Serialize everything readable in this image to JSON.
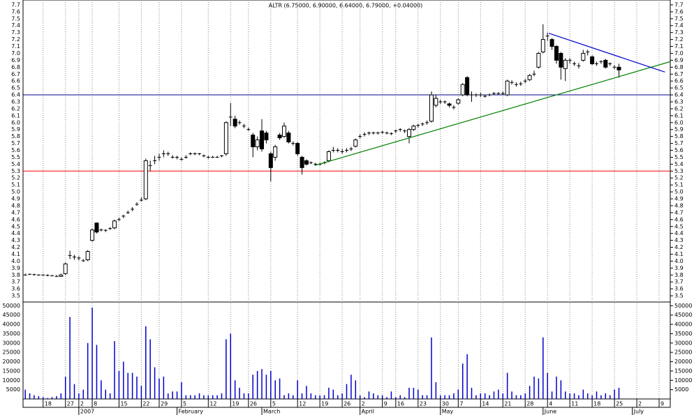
{
  "chart_data": {
    "type": "candlestick",
    "title": "ALTR (6.75000, 6.90000, 6.64000, 6.79000, +0.04000)",
    "xlim": [
      -0.5,
      144.5
    ],
    "xticks": [
      {
        "value": 4,
        "label": "18"
      },
      {
        "value": 9,
        "label": "27"
      },
      {
        "value": 12,
        "label": "2"
      },
      {
        "value": 15,
        "label": "8"
      },
      {
        "value": 21,
        "label": "15"
      },
      {
        "value": 26,
        "label": "22"
      },
      {
        "value": 30,
        "label": "29"
      },
      {
        "value": 35,
        "label": "5"
      },
      {
        "value": 41,
        "label": "12"
      },
      {
        "value": 46,
        "label": "19"
      },
      {
        "value": 50,
        "label": "26"
      },
      {
        "value": 55,
        "label": "5"
      },
      {
        "value": 61,
        "label": "12"
      },
      {
        "value": 66,
        "label": "19"
      },
      {
        "value": 71,
        "label": "26"
      },
      {
        "value": 75,
        "label": "2"
      },
      {
        "value": 80,
        "label": "9"
      },
      {
        "value": 83,
        "label": "16"
      },
      {
        "value": 88,
        "label": "23"
      },
      {
        "value": 93,
        "label": "30"
      },
      {
        "value": 97,
        "label": "7"
      },
      {
        "value": 102,
        "label": "14"
      },
      {
        "value": 107,
        "label": "21"
      },
      {
        "value": 112,
        "label": "28"
      },
      {
        "value": 117,
        "label": "4"
      },
      {
        "value": 122,
        "label": "11"
      },
      {
        "value": 127,
        "label": "18"
      },
      {
        "value": 132,
        "label": "25"
      },
      {
        "value": 137,
        "label": "2"
      },
      {
        "value": 142,
        "label": "9"
      }
    ],
    "months": [
      {
        "value": 12,
        "label": "2007"
      },
      {
        "value": 34,
        "label": "February"
      },
      {
        "value": 53,
        "label": "March"
      },
      {
        "value": 75,
        "label": "April"
      },
      {
        "value": 93,
        "label": "May"
      },
      {
        "value": 116,
        "label": "June"
      },
      {
        "value": 136,
        "label": "July"
      }
    ],
    "ylim": [
      3.41,
      7.77
    ],
    "yticks": [
      3.5,
      3.6,
      3.7,
      3.8,
      3.9,
      {
        "value": 4,
        "label": "4.0"
      },
      4.1,
      4.2,
      4.3,
      4.4,
      4.5,
      4.6,
      4.7,
      4.8,
      4.9,
      {
        "value": 5,
        "label": "5.0"
      },
      5.1,
      5.2,
      5.3,
      5.4,
      5.5,
      5.6,
      5.7,
      5.8,
      5.9,
      {
        "value": 6,
        "label": "6.0"
      },
      6.1,
      6.2,
      6.3,
      6.4,
      6.5,
      6.6,
      6.7,
      6.8,
      6.9,
      {
        "value": 7,
        "label": "7.0"
      },
      7.1,
      7.2,
      7.3,
      7.4,
      7.5,
      7.6,
      7.7
    ],
    "open": [
      3.8,
      3.81,
      3.81,
      3.8,
      3.8,
      3.8,
      3.79,
      3.78,
      3.78,
      3.82,
      4.08,
      4.06,
      4.05,
      4.01,
      4.02,
      4.3,
      4.55,
      4.45,
      4.45,
      4.47,
      4.48,
      4.6,
      4.65,
      4.7,
      4.75,
      4.82,
      4.88,
      4.9,
      5.38,
      5.45,
      5.5,
      5.55,
      5.55,
      5.5,
      5.5,
      5.47,
      5.5,
      5.55,
      5.55,
      5.55,
      5.52,
      5.5,
      5.5,
      5.5,
      5.52,
      5.55,
      6.08,
      6.05,
      6.0,
      5.95,
      5.9,
      5.82,
      5.65,
      5.88,
      5.85,
      5.55,
      5.5,
      5.82,
      5.8,
      5.85,
      5.7,
      5.7,
      5.5,
      5.45,
      5.42,
      5.4,
      5.4,
      5.42,
      5.45,
      5.6,
      5.6,
      5.58,
      5.6,
      5.62,
      5.66,
      5.8,
      5.83,
      5.85,
      5.85,
      5.85,
      5.86,
      5.85,
      5.84,
      5.88,
      5.9,
      5.88,
      5.8,
      5.9,
      5.96,
      5.98,
      6.0,
      6.02,
      6.25,
      6.3,
      6.3,
      6.27,
      6.22,
      6.28,
      6.4,
      6.65,
      6.4,
      6.4,
      6.4,
      6.38,
      6.4,
      6.42,
      6.42,
      6.42,
      6.4,
      6.58,
      6.55,
      6.56,
      6.6,
      6.62,
      6.7,
      6.8,
      7.02,
      7.25,
      7.2,
      7.1,
      7.0,
      6.78,
      6.9,
      6.85,
      6.82,
      6.9,
      7.02,
      6.95,
      6.85,
      6.88,
      6.9,
      6.85,
      6.8,
      6.8
    ],
    "high": [
      3.82,
      3.82,
      3.82,
      3.81,
      3.81,
      3.81,
      3.8,
      3.8,
      3.82,
      3.98,
      4.15,
      4.09,
      4.07,
      4.03,
      4.16,
      4.47,
      4.56,
      4.47,
      4.46,
      4.49,
      4.6,
      4.63,
      4.67,
      4.73,
      4.78,
      4.85,
      4.92,
      5.48,
      5.45,
      5.52,
      5.55,
      5.6,
      5.58,
      5.53,
      5.52,
      5.5,
      5.53,
      5.57,
      5.57,
      5.56,
      5.54,
      5.52,
      5.52,
      5.52,
      5.53,
      6.02,
      6.28,
      6.1,
      6.03,
      5.98,
      5.93,
      5.85,
      5.8,
      6.05,
      5.88,
      5.58,
      5.68,
      5.85,
      6.0,
      5.88,
      5.73,
      5.72,
      5.52,
      5.47,
      5.44,
      5.42,
      5.42,
      5.44,
      5.6,
      5.65,
      5.63,
      5.62,
      5.63,
      5.65,
      5.77,
      5.83,
      5.86,
      5.87,
      5.87,
      5.87,
      5.88,
      5.87,
      5.86,
      5.9,
      5.92,
      5.9,
      5.92,
      5.97,
      5.98,
      6.0,
      6.03,
      6.45,
      6.4,
      6.33,
      6.32,
      6.29,
      6.25,
      6.35,
      6.57,
      6.67,
      6.45,
      6.42,
      6.43,
      6.4,
      6.42,
      6.44,
      6.44,
      6.45,
      6.62,
      6.61,
      6.58,
      6.59,
      6.63,
      6.7,
      6.75,
      7.02,
      7.42,
      7.3,
      7.22,
      7.12,
      7.02,
      6.93,
      6.93,
      6.88,
      6.86,
      7.05,
      7.05,
      6.97,
      6.88,
      6.9,
      6.92,
      6.87,
      6.83,
      6.85
    ],
    "low": [
      3.79,
      3.8,
      3.79,
      3.79,
      3.79,
      3.78,
      3.78,
      3.77,
      3.77,
      3.8,
      4.03,
      4.02,
      4.01,
      3.99,
      4.0,
      4.28,
      4.4,
      4.43,
      4.42,
      4.45,
      4.46,
      4.58,
      4.62,
      4.68,
      4.72,
      4.8,
      4.86,
      4.88,
      5.3,
      5.4,
      5.45,
      5.5,
      5.52,
      5.48,
      5.47,
      5.45,
      5.48,
      5.53,
      5.53,
      5.53,
      5.5,
      5.48,
      5.49,
      5.49,
      5.5,
      5.52,
      5.95,
      5.92,
      5.97,
      5.92,
      5.88,
      5.5,
      5.6,
      5.58,
      5.7,
      5.15,
      5.45,
      5.75,
      5.78,
      5.7,
      5.67,
      5.52,
      5.25,
      5.38,
      5.4,
      5.38,
      5.38,
      5.4,
      5.43,
      5.57,
      5.57,
      5.55,
      5.57,
      5.59,
      5.64,
      5.77,
      5.8,
      5.82,
      5.83,
      5.83,
      5.84,
      5.83,
      5.82,
      5.85,
      5.87,
      5.85,
      5.7,
      5.88,
      5.93,
      5.95,
      5.97,
      6.0,
      6.22,
      6.27,
      6.27,
      6.22,
      6.19,
      6.26,
      6.38,
      6.38,
      6.3,
      6.37,
      6.37,
      6.36,
      6.38,
      6.4,
      6.4,
      6.4,
      6.38,
      6.55,
      6.52,
      6.53,
      6.57,
      6.6,
      6.67,
      6.78,
      7.0,
      7.18,
      7.05,
      6.85,
      6.62,
      6.6,
      6.85,
      6.82,
      6.78,
      6.88,
      6.97,
      6.83,
      6.82,
      6.85,
      6.78,
      6.82,
      6.77,
      6.65
    ],
    "close": [
      3.8,
      3.81,
      3.8,
      3.8,
      3.8,
      3.79,
      3.79,
      3.78,
      3.8,
      3.96,
      4.08,
      4.06,
      4.04,
      4.0,
      4.14,
      4.45,
      4.42,
      4.45,
      4.44,
      4.47,
      4.58,
      4.6,
      4.65,
      4.7,
      4.75,
      4.82,
      4.88,
      5.45,
      5.38,
      5.45,
      5.5,
      5.55,
      5.55,
      5.5,
      5.5,
      5.47,
      5.5,
      5.55,
      5.55,
      5.55,
      5.52,
      5.5,
      5.5,
      5.5,
      5.52,
      6.0,
      6.08,
      5.95,
      6.0,
      5.95,
      5.9,
      5.65,
      5.75,
      5.62,
      5.75,
      5.35,
      5.65,
      5.78,
      5.95,
      5.72,
      5.7,
      5.55,
      5.35,
      5.4,
      5.42,
      5.4,
      5.4,
      5.42,
      5.58,
      5.6,
      5.6,
      5.58,
      5.6,
      5.62,
      5.75,
      5.8,
      5.83,
      5.85,
      5.85,
      5.85,
      5.86,
      5.85,
      5.84,
      5.88,
      5.9,
      5.88,
      5.9,
      5.95,
      5.96,
      5.98,
      6.0,
      6.4,
      6.35,
      6.3,
      6.3,
      6.25,
      6.22,
      6.33,
      6.55,
      6.4,
      6.4,
      6.4,
      6.4,
      6.38,
      6.4,
      6.42,
      6.42,
      6.42,
      6.6,
      6.58,
      6.55,
      6.56,
      6.6,
      6.68,
      6.7,
      7.0,
      7.2,
      7.25,
      7.1,
      6.9,
      6.8,
      6.9,
      6.9,
      6.85,
      6.82,
      7.0,
      7.02,
      6.85,
      6.85,
      6.88,
      6.8,
      6.85,
      6.8,
      6.76
    ],
    "hlines": [
      {
        "value": 6.4,
        "color": "#00008b"
      },
      {
        "value": 5.3,
        "color": "#ff0000"
      }
    ],
    "trendlines": [
      {
        "color": "#008000",
        "x": [
          64.8,
          144.5
        ],
        "y": [
          5.38,
          6.88
        ]
      },
      {
        "color": "#0000cc",
        "x": [
          117.3,
          143.3
        ],
        "y": [
          7.29,
          6.73
        ]
      }
    ],
    "volume": {
      "color": "#0000cc",
      "ylim": [
        0,
        52000
      ],
      "yticks": [
        5000,
        10000,
        15000,
        20000,
        25000,
        30000,
        35000,
        40000,
        45000,
        50000
      ],
      "values": [
        5000,
        3000,
        2000,
        1500,
        1000,
        500,
        1000,
        1500,
        3000,
        12000,
        44000,
        8000,
        3000,
        5000,
        30000,
        49000,
        29000,
        10000,
        5000,
        3000,
        31000,
        15000,
        20000,
        14000,
        14000,
        12000,
        7000,
        39000,
        32000,
        17000,
        11000,
        12000,
        3000,
        4000,
        4000,
        9000,
        2000,
        2000,
        2000,
        3000,
        2000,
        2000,
        2000,
        2000,
        3000,
        32000,
        35000,
        10000,
        6000,
        3000,
        3000,
        13000,
        15000,
        16000,
        13000,
        15000,
        10000,
        11000,
        2000,
        3000,
        2000,
        10000,
        3000,
        7000,
        3000,
        2000,
        2000,
        2000,
        6000,
        5000,
        2000,
        3000,
        8000,
        13000,
        10000,
        2000,
        1000,
        4000,
        3000,
        2000,
        2000,
        1000,
        4000,
        1000,
        2000,
        1000,
        6000,
        6000,
        5000,
        2000,
        2000,
        33000,
        9000,
        2000,
        2000,
        2000,
        3000,
        5000,
        19000,
        24000,
        6000,
        2000,
        3000,
        3000,
        2000,
        4000,
        5000,
        3000,
        14000,
        4000,
        2000,
        2000,
        3000,
        7000,
        12000,
        11000,
        33000,
        14000,
        4000,
        12000,
        10000,
        4000,
        3000,
        3000,
        2000,
        5000,
        3000,
        2000,
        4000,
        2000,
        3000,
        2000,
        5000,
        6000
      ]
    }
  }
}
